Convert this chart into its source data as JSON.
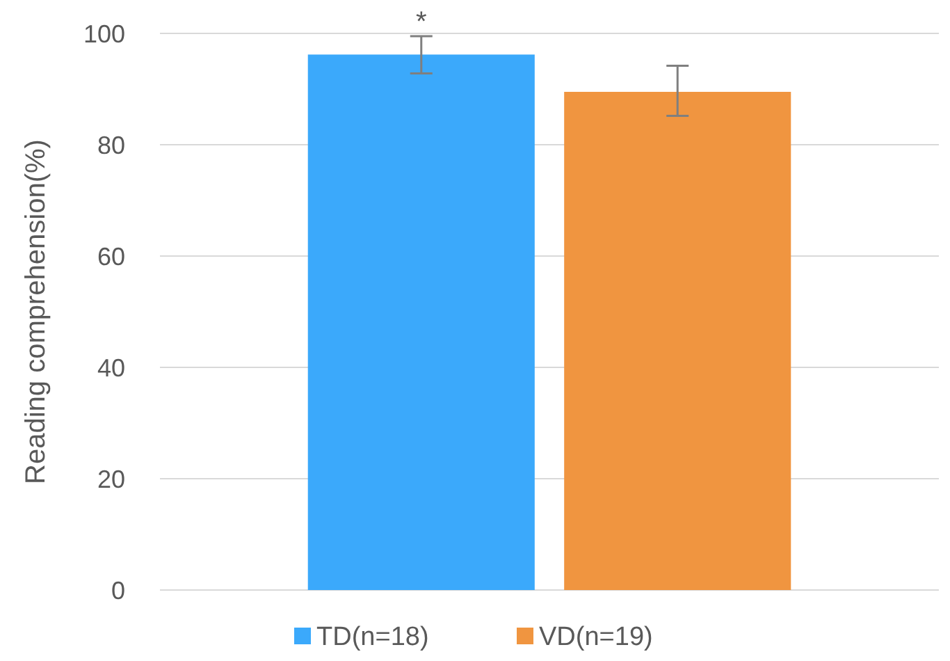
{
  "chart_data": {
    "type": "bar",
    "ylabel": "Reading comprehension(%)",
    "categories": [
      null
    ],
    "series": [
      {
        "name": "TD(n=18)",
        "color": "#3ba9fb",
        "values": [
          96.2
        ],
        "errors": [
          [
            92.8,
            99.5
          ]
        ]
      },
      {
        "name": "VD(n=19)",
        "color": "#f09540",
        "values": [
          89.5
        ],
        "errors": [
          [
            85.2,
            94.2
          ]
        ]
      }
    ],
    "ylim": [
      0,
      100
    ],
    "yticks": [
      0,
      20,
      40,
      60,
      80,
      100
    ],
    "grid": "y",
    "legend": "bottom",
    "annotations": [
      "*"
    ]
  }
}
